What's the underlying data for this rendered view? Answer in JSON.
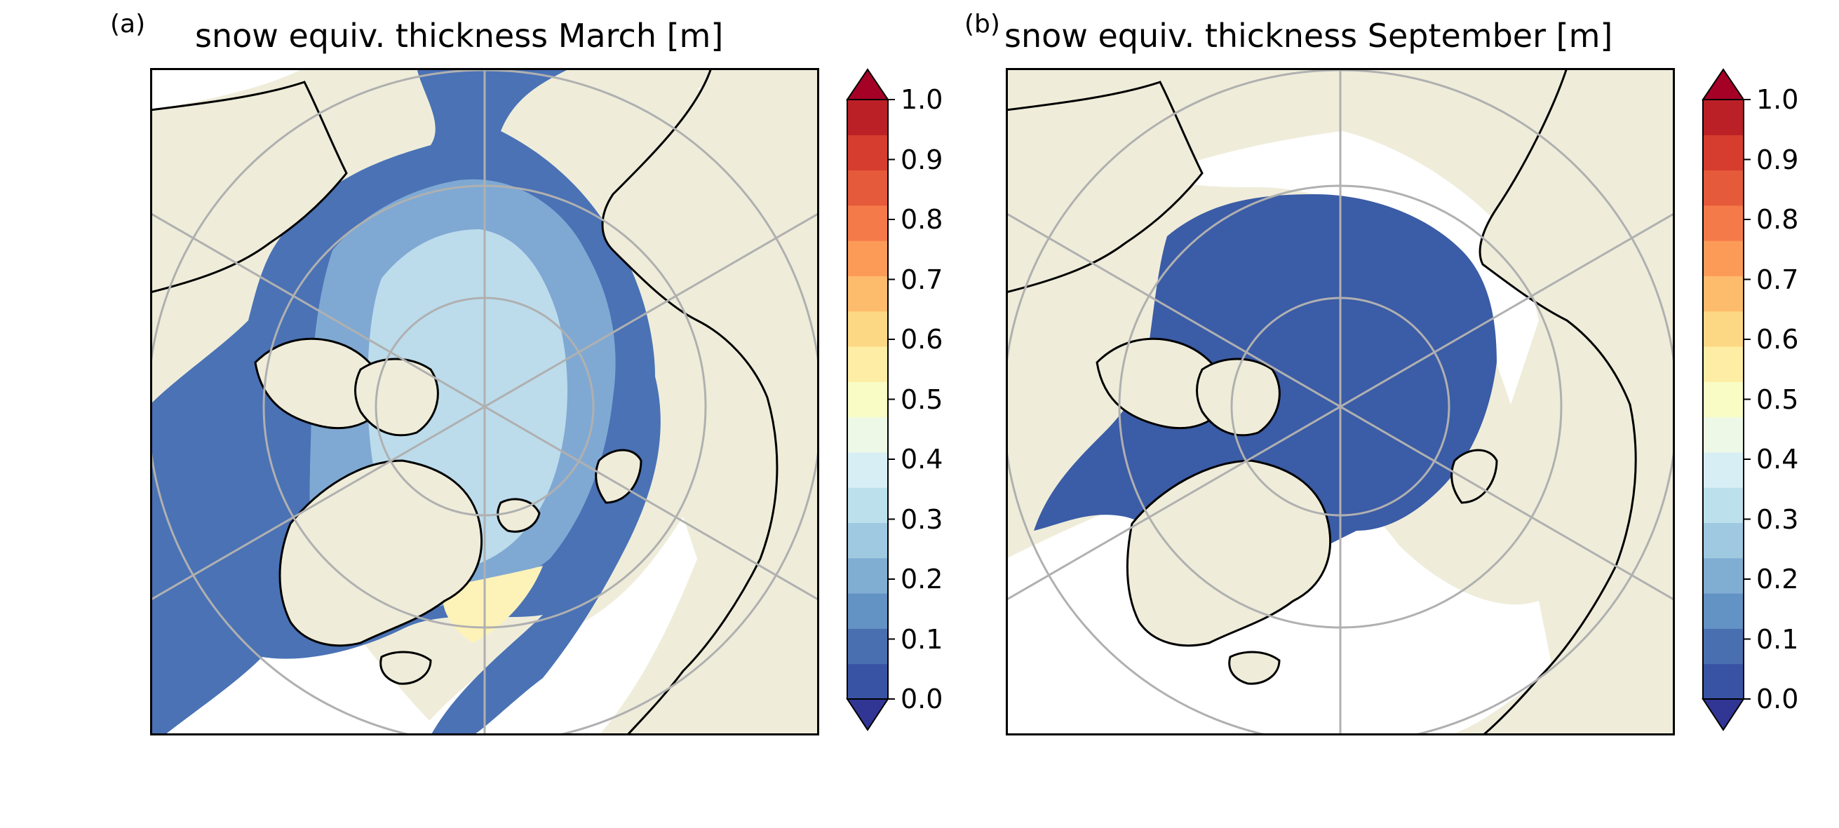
{
  "panels": [
    {
      "label": "(a)",
      "title": "snow equiv. thickness March [m]",
      "colorbar_ticks": [
        "1.0",
        "0.9",
        "0.8",
        "0.7",
        "0.6",
        "0.5",
        "0.4",
        "0.3",
        "0.2",
        "0.1",
        "0.0"
      ]
    },
    {
      "label": "(b)",
      "title": "snow equiv. thickness September [m]",
      "colorbar_ticks": [
        "1.0",
        "0.9",
        "0.8",
        "0.7",
        "0.6",
        "0.5",
        "0.4",
        "0.3",
        "0.2",
        "0.1",
        "0.0"
      ]
    }
  ],
  "colors": {
    "land": "#efedda",
    "ocean": "#ffffff",
    "gridline": "#b0b0b0",
    "colorbar": [
      "#313695",
      "#3953a4",
      "#4a6fb0",
      "#6392c4",
      "#80add2",
      "#9ec9e0",
      "#bde0ed",
      "#d8eef5",
      "#eef8e6",
      "#f9fcc5",
      "#feeda4",
      "#fdd884",
      "#fdbb6c",
      "#fc9b58",
      "#f57a49",
      "#e55a3a",
      "#d63d2e",
      "#bb2026",
      "#a50026"
    ],
    "march_thin": "#4a72b5",
    "march_mid": "#7fa9d3",
    "march_thick": "#bcdcec",
    "march_hot": "#fdf2b8",
    "september_ice": "#3b5ca6"
  }
}
